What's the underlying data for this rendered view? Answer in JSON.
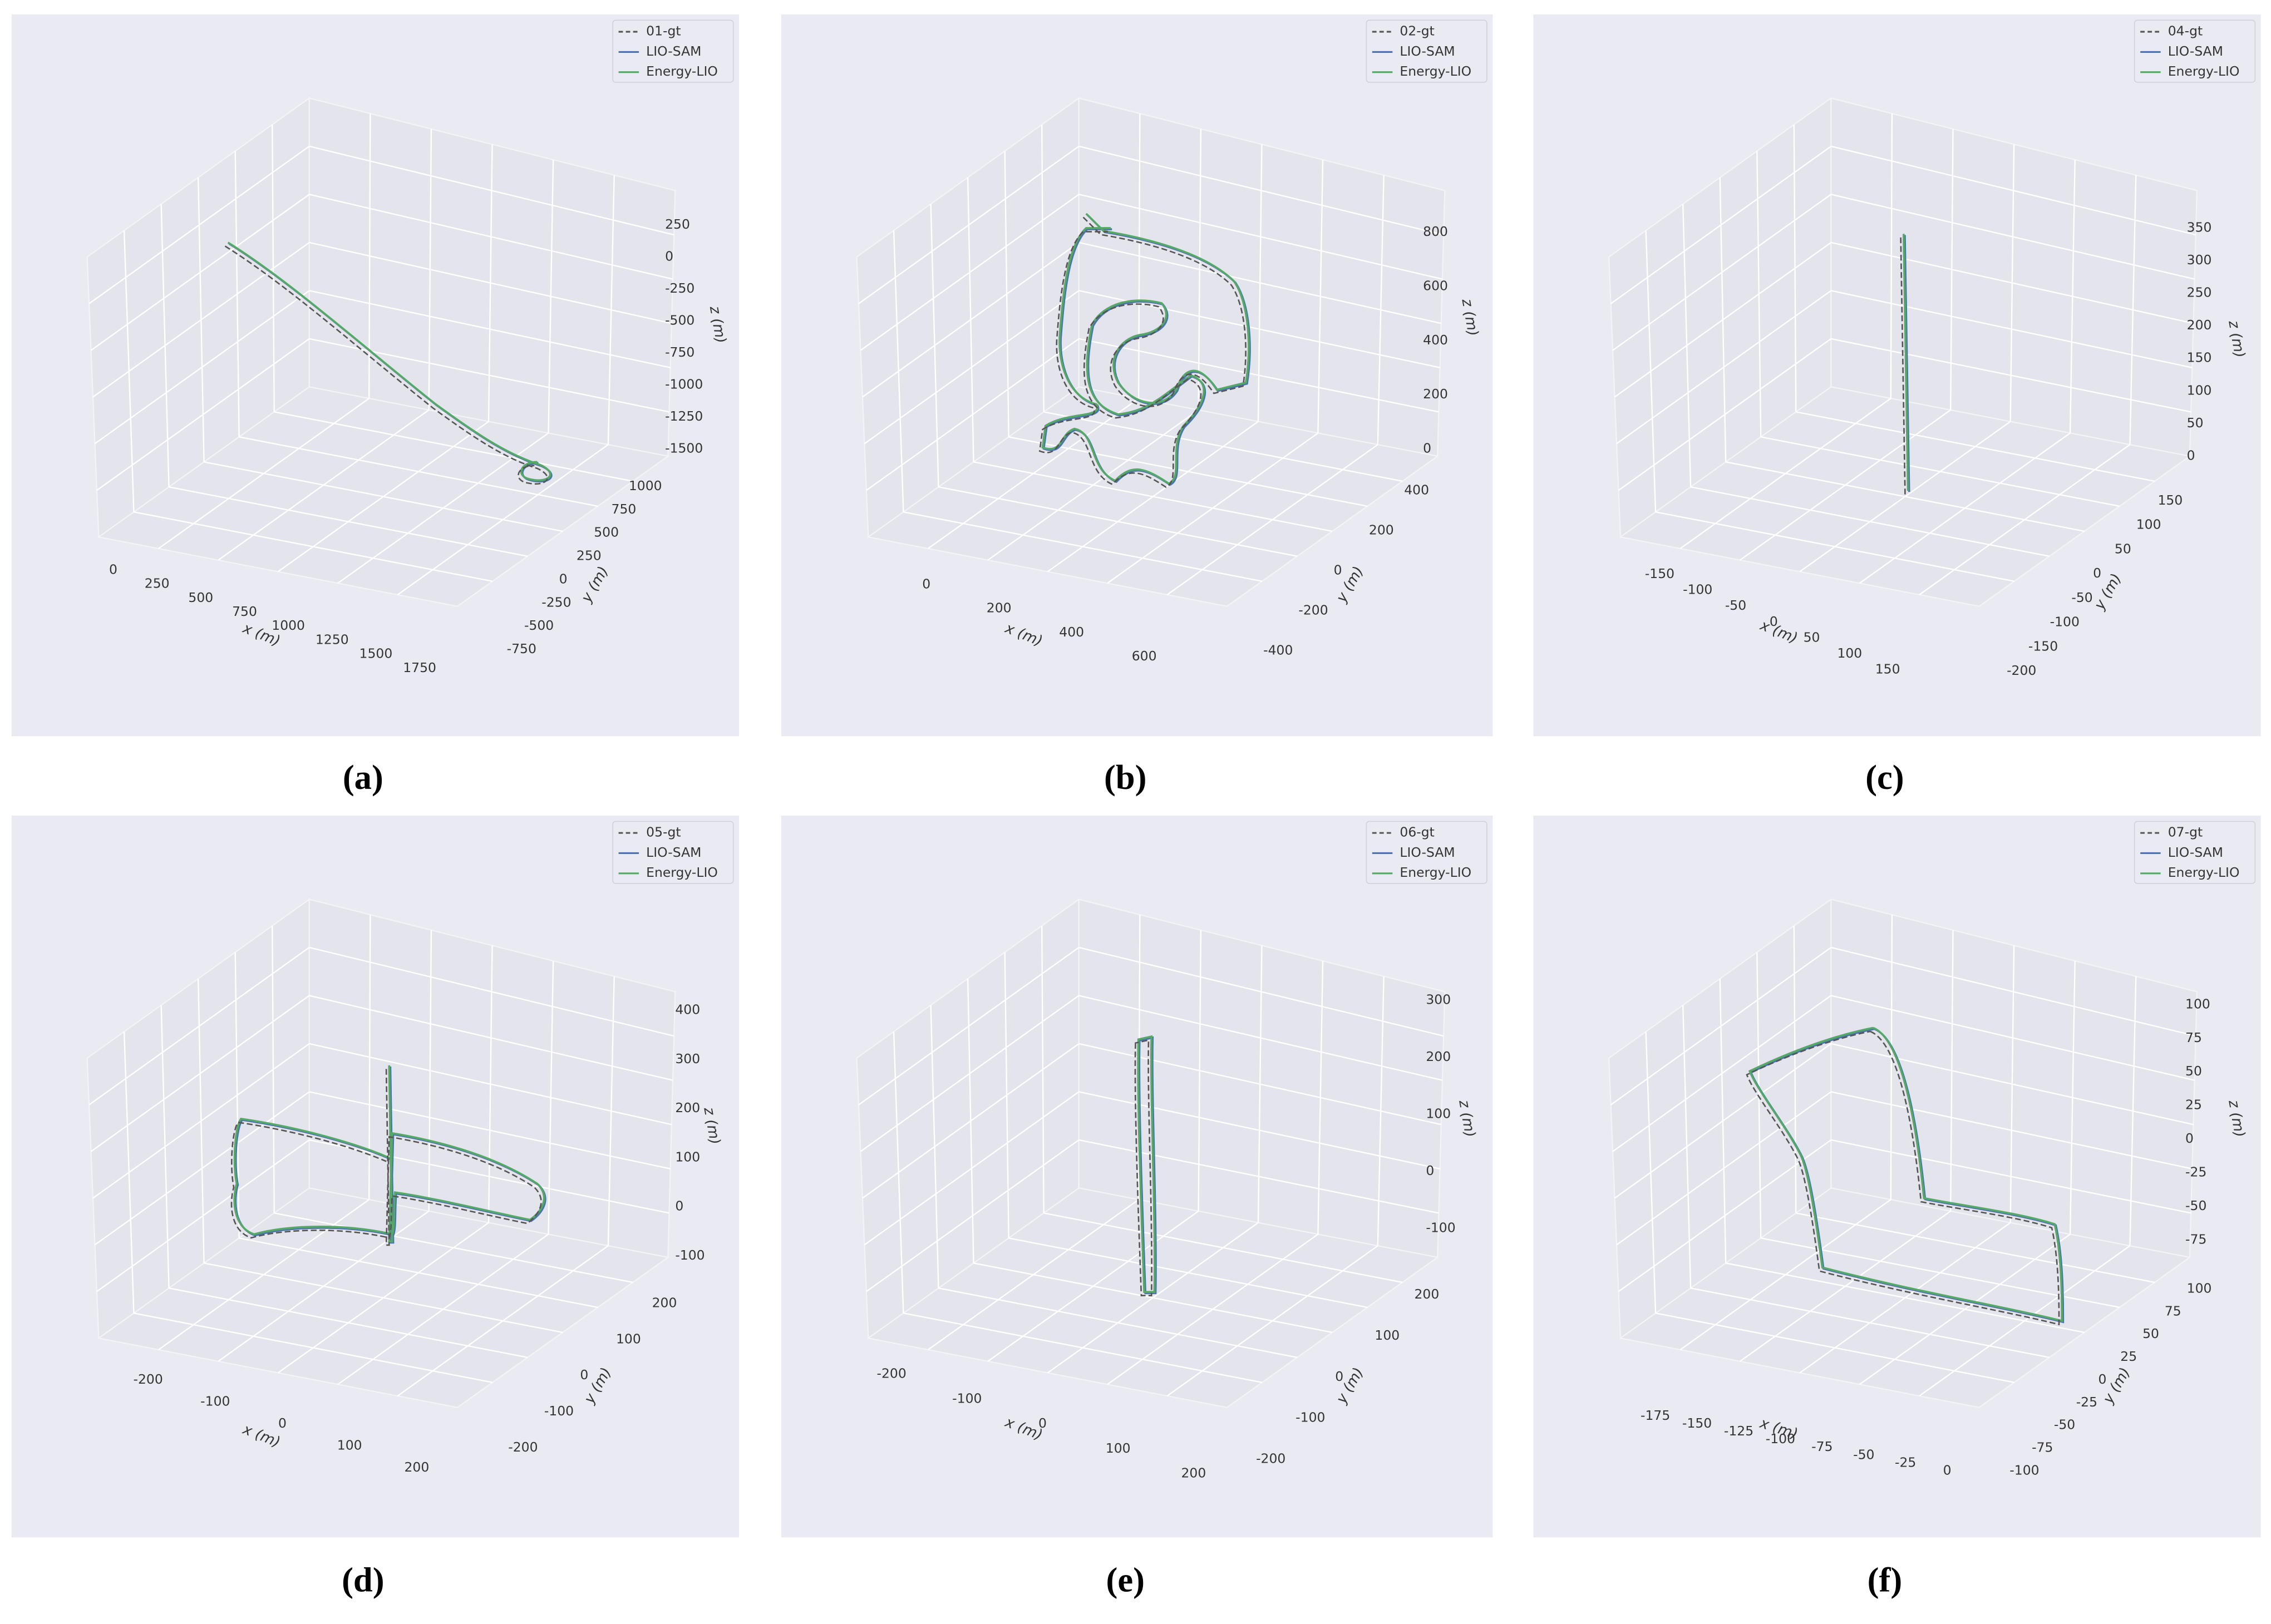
{
  "chart_data": [
    {
      "type": "line3d",
      "label": "(a)",
      "legend": "upper right",
      "grid": true,
      "series": [
        {
          "name": "01-gt",
          "color": "#555555"
        },
        {
          "name": "LIO-SAM",
          "color": "#4c72b0"
        },
        {
          "name": "Energy-LIO",
          "color": "#55a868"
        }
      ],
      "xlabel": "x (m)",
      "ylabel": "y (m)",
      "zlabel": "z (m)",
      "xticks": [
        0,
        250,
        500,
        750,
        1000,
        1250,
        1500,
        1750
      ],
      "yticks": [
        -750,
        -500,
        -250,
        0,
        250,
        500,
        750,
        1000
      ],
      "zticks": [
        -1500,
        -1250,
        -1000,
        -750,
        -500,
        -250,
        0,
        250
      ]
    },
    {
      "type": "line3d",
      "label": "(b)",
      "legend": "upper right",
      "grid": true,
      "series": [
        {
          "name": "02-gt",
          "color": "#555555"
        },
        {
          "name": "LIO-SAM",
          "color": "#4c72b0"
        },
        {
          "name": "Energy-LIO",
          "color": "#55a868"
        }
      ],
      "xlabel": "x (m)",
      "ylabel": "y (m)",
      "zlabel": "z (m)",
      "xticks": [
        0,
        200,
        400,
        600
      ],
      "yticks": [
        -400,
        -200,
        0,
        200,
        400
      ],
      "zticks": [
        0,
        200,
        400,
        600,
        800
      ]
    },
    {
      "type": "line3d",
      "label": "(c)",
      "legend": "upper right",
      "grid": true,
      "series": [
        {
          "name": "04-gt",
          "color": "#555555"
        },
        {
          "name": "LIO-SAM",
          "color": "#4c72b0"
        },
        {
          "name": "Energy-LIO",
          "color": "#55a868"
        }
      ],
      "xlabel": "x (m)",
      "ylabel": "y (m)",
      "zlabel": "z (m)",
      "xticks": [
        -150,
        -100,
        -50,
        0,
        50,
        100,
        150
      ],
      "yticks": [
        -200,
        -150,
        -100,
        -50,
        0,
        50,
        100,
        150
      ],
      "zticks": [
        0,
        50,
        100,
        150,
        200,
        250,
        300,
        350
      ]
    },
    {
      "type": "line3d",
      "label": "(d)",
      "legend": "upper right",
      "grid": true,
      "series": [
        {
          "name": "05-gt",
          "color": "#555555"
        },
        {
          "name": "LIO-SAM",
          "color": "#4c72b0"
        },
        {
          "name": "Energy-LIO",
          "color": "#55a868"
        }
      ],
      "xlabel": "x (m)",
      "ylabel": "y (m)",
      "zlabel": "z (m)",
      "xticks": [
        -200,
        -100,
        0,
        100,
        200
      ],
      "yticks": [
        -200,
        -100,
        0,
        100,
        200
      ],
      "zticks": [
        -100,
        0,
        100,
        200,
        300,
        400
      ]
    },
    {
      "type": "line3d",
      "label": "(e)",
      "legend": "upper right",
      "grid": true,
      "series": [
        {
          "name": "06-gt",
          "color": "#555555"
        },
        {
          "name": "LIO-SAM",
          "color": "#4c72b0"
        },
        {
          "name": "Energy-LIO",
          "color": "#55a868"
        }
      ],
      "xlabel": "x (m)",
      "ylabel": "y (m)",
      "zlabel": "z (m)",
      "xticks": [
        -200,
        -100,
        0,
        100,
        200
      ],
      "yticks": [
        -200,
        -100,
        0,
        100,
        200
      ],
      "zticks": [
        -100,
        0,
        100,
        200,
        300
      ]
    },
    {
      "type": "line3d",
      "label": "(f)",
      "legend": "upper right",
      "grid": true,
      "series": [
        {
          "name": "07-gt",
          "color": "#555555"
        },
        {
          "name": "LIO-SAM",
          "color": "#4c72b0"
        },
        {
          "name": "Energy-LIO",
          "color": "#55a868"
        }
      ],
      "xlabel": "x (m)",
      "ylabel": "y (m)",
      "zlabel": "z (m)",
      "xticks": [
        -175,
        -150,
        -125,
        -100,
        -75,
        -50,
        -25,
        0
      ],
      "yticks": [
        -100,
        -75,
        -50,
        -25,
        0,
        25,
        50,
        75,
        100
      ],
      "zticks": [
        -75,
        -50,
        -25,
        0,
        25,
        50,
        75,
        100
      ]
    }
  ]
}
